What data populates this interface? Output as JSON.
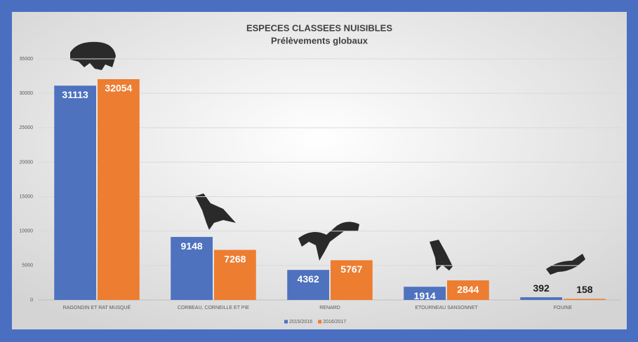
{
  "chart_data": {
    "type": "bar",
    "title": "ESPECES CLASSEES NUISIBLES",
    "subtitle": "Prélèvements globaux",
    "categories": [
      "RAGONDIN ET RAT MUSQUÉ",
      "CORBEAU, CORNEILLE ET PIE",
      "RENARD",
      "ETOURNEAU SANSONNET",
      "FOUINE"
    ],
    "series": [
      {
        "name": "2015/2016",
        "color": "#4f72be",
        "values": [
          31113,
          9148,
          4362,
          1914,
          392
        ]
      },
      {
        "name": "2016/2017",
        "color": "#ed7d31",
        "values": [
          32054,
          7268,
          5767,
          2844,
          158
        ]
      }
    ],
    "ylim": [
      0,
      35000
    ],
    "yticks": [
      0,
      5000,
      10000,
      15000,
      20000,
      25000,
      30000,
      35000
    ],
    "grid": true,
    "legend": "bottom"
  }
}
